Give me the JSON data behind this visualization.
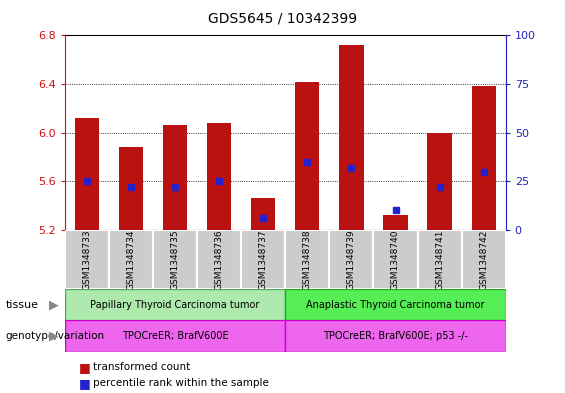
{
  "title": "GDS5645 / 10342399",
  "samples": [
    "GSM1348733",
    "GSM1348734",
    "GSM1348735",
    "GSM1348736",
    "GSM1348737",
    "GSM1348738",
    "GSM1348739",
    "GSM1348740",
    "GSM1348741",
    "GSM1348742"
  ],
  "transformed_count": [
    6.12,
    5.88,
    6.06,
    6.08,
    5.46,
    6.42,
    6.72,
    5.32,
    6.0,
    6.38
  ],
  "percentile_rank": [
    25,
    22,
    22,
    25,
    6,
    35,
    32,
    10,
    22,
    30
  ],
  "ylim_left": [
    5.2,
    6.8
  ],
  "ylim_right": [
    0,
    100
  ],
  "yticks_left": [
    5.2,
    5.6,
    6.0,
    6.4,
    6.8
  ],
  "yticks_right": [
    0,
    25,
    50,
    75,
    100
  ],
  "tissue_group1_text": "Papillary Thyroid Carcinoma tumor",
  "tissue_group1_color": "#AEEAAE",
  "tissue_group2_text": "Anaplastic Thyroid Carcinoma tumor",
  "tissue_group2_color": "#55EE55",
  "genotype_group1_text": "TPOCreER; BrafV600E",
  "genotype_group2_text": "TPOCreER; BrafV600E; p53 -/-",
  "genotype_color": "#EE66EE",
  "bar_color": "#BB1111",
  "dot_color": "#2222CC",
  "left_axis_color": "#CC1111",
  "right_axis_color": "#2222BB",
  "sample_box_color": "#CCCCCC",
  "sample_box_edge": "#AAAAAA",
  "base_value": 5.2,
  "group1_indices": [
    0,
    1,
    2,
    3,
    4
  ],
  "group2_indices": [
    5,
    6,
    7,
    8,
    9
  ]
}
